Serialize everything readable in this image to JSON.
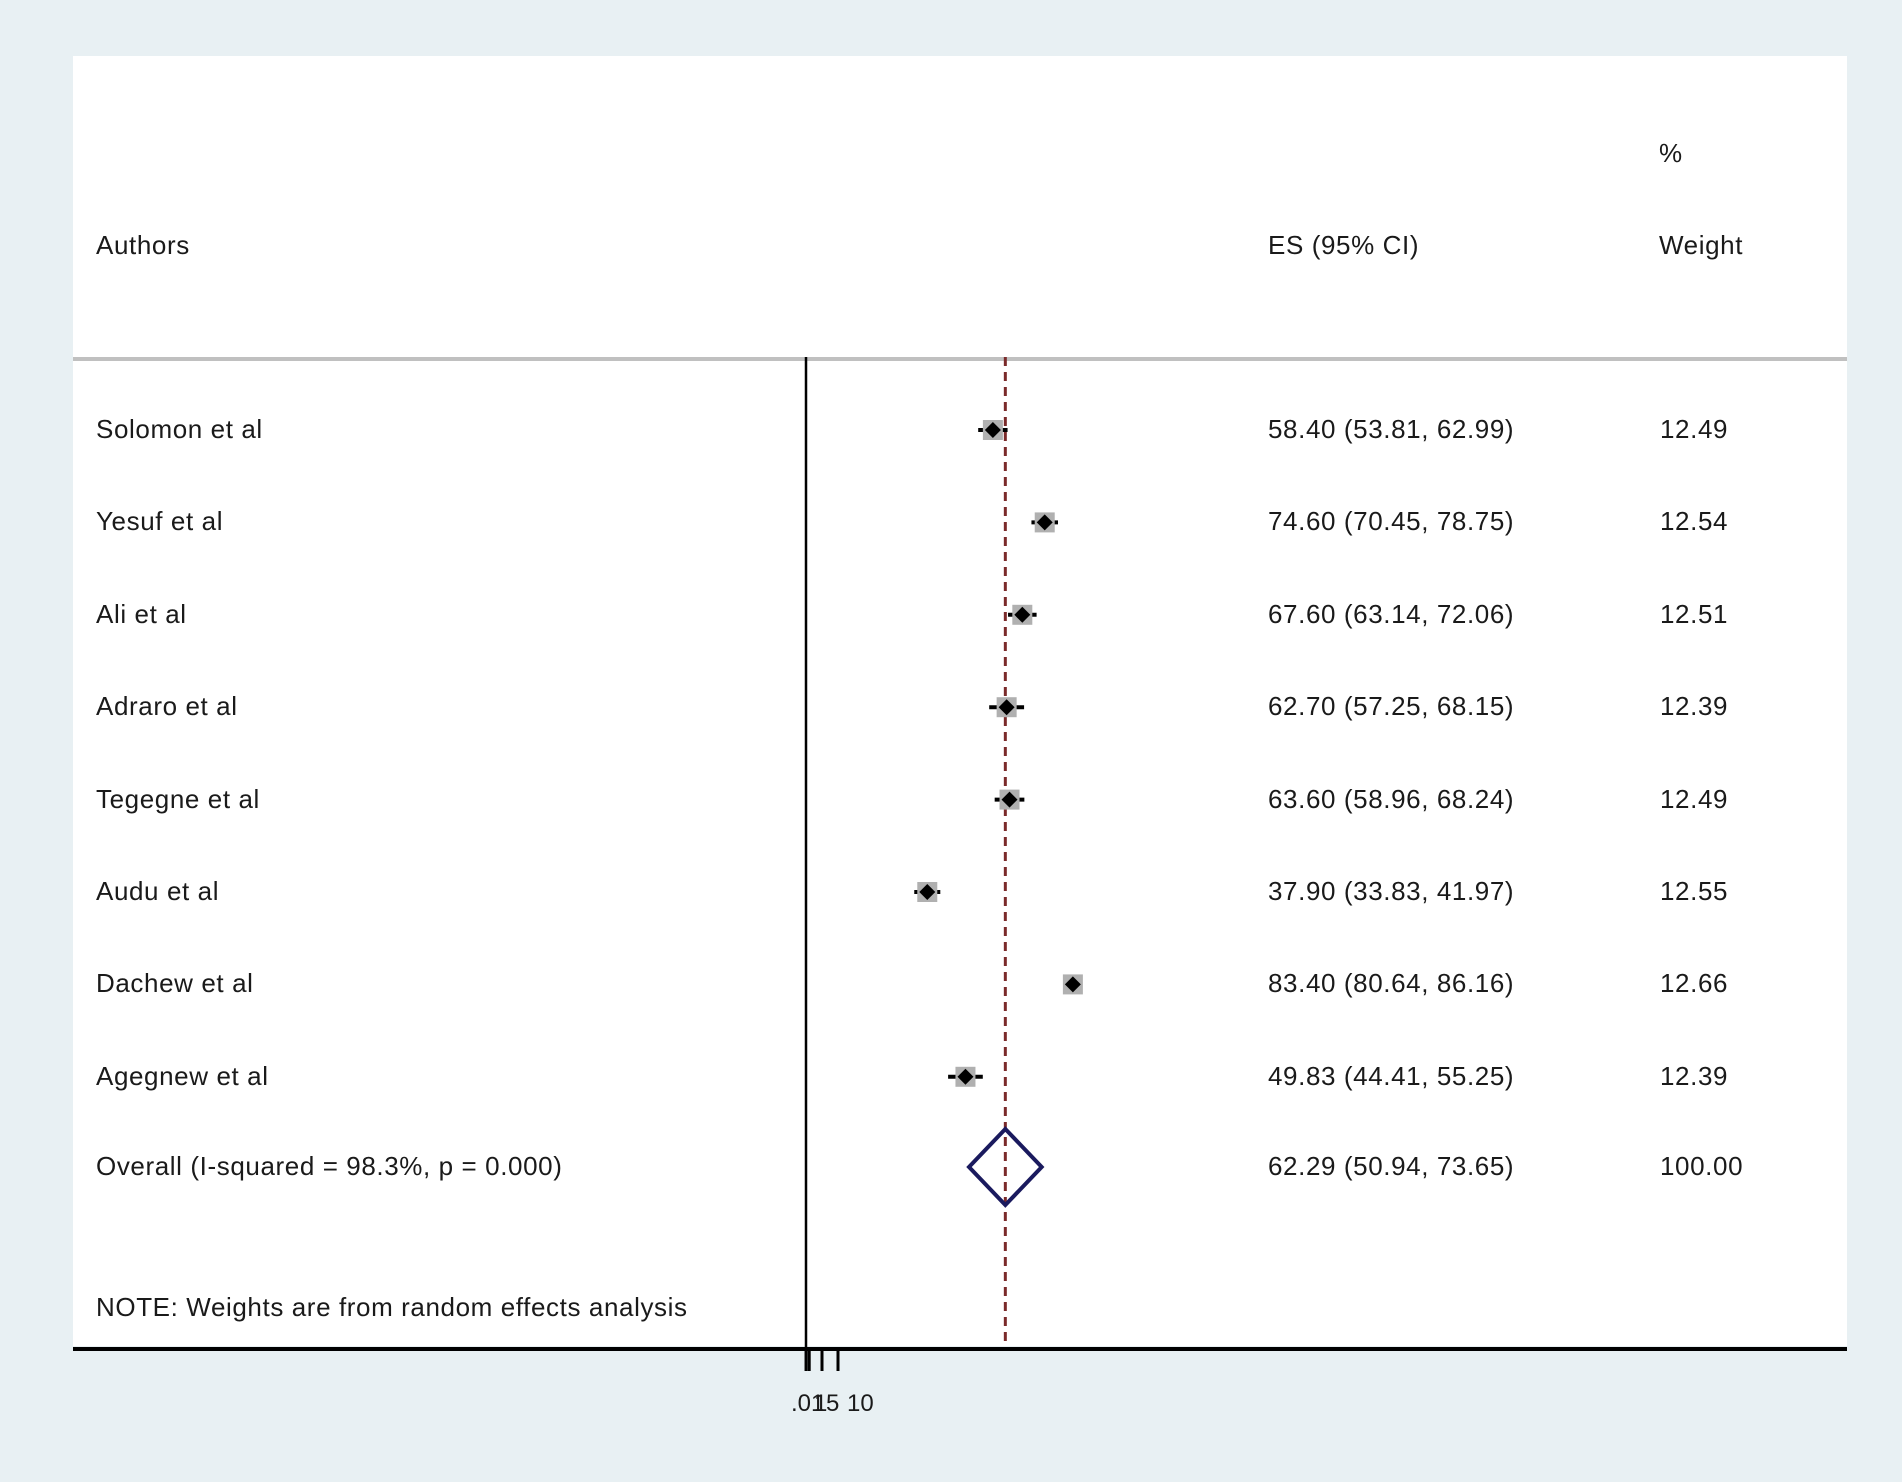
{
  "header": {
    "authors": "Authors",
    "es": "ES (95% CI)",
    "weight_pct": "%",
    "weight": "Weight"
  },
  "note": "NOTE: Weights are from random effects analysis",
  "x_tick_labels": [
    ".01",
    "1",
    "5",
    "10"
  ],
  "colors": {
    "background": "#e8f0f3",
    "panel": "#ffffff",
    "marker": "#000000",
    "marker_box": "#b0b0b0",
    "overall_diamond": "#1a1a5e",
    "reference_line": "#7a2a2a",
    "header_rule": "#c0c0c0"
  },
  "chart_data": {
    "type": "forest",
    "overall_es": 62.29,
    "rows": [
      {
        "label": "Solomon et al",
        "es": 58.4,
        "lo": 53.81,
        "hi": 62.99,
        "es_text": "58.40 (53.81, 62.99)",
        "weight": "12.49"
      },
      {
        "label": "Yesuf et al",
        "es": 74.6,
        "lo": 70.45,
        "hi": 78.75,
        "es_text": "74.60 (70.45, 78.75)",
        "weight": "12.54"
      },
      {
        "label": "Ali et al",
        "es": 67.6,
        "lo": 63.14,
        "hi": 72.06,
        "es_text": "67.60 (63.14, 72.06)",
        "weight": "12.51"
      },
      {
        "label": "Adraro et al",
        "es": 62.7,
        "lo": 57.25,
        "hi": 68.15,
        "es_text": "62.70 (57.25, 68.15)",
        "weight": "12.39"
      },
      {
        "label": "Tegegne et al",
        "es": 63.6,
        "lo": 58.96,
        "hi": 68.24,
        "es_text": "63.60 (58.96, 68.24)",
        "weight": "12.49"
      },
      {
        "label": "Audu et al",
        "es": 37.9,
        "lo": 33.83,
        "hi": 41.97,
        "es_text": "37.90 (33.83, 41.97)",
        "weight": "12.55"
      },
      {
        "label": "Dachew et al",
        "es": 83.4,
        "lo": 80.64,
        "hi": 86.16,
        "es_text": "83.40 (80.64, 86.16)",
        "weight": "12.66"
      },
      {
        "label": "Agegnew et al",
        "es": 49.83,
        "lo": 44.41,
        "hi": 55.25,
        "es_text": "49.83 (44.41, 55.25)",
        "weight": "12.39"
      }
    ],
    "overall": {
      "label": "Overall  (I-squared = 98.3%, p = 0.000)",
      "es": 62.29,
      "lo": 50.94,
      "hi": 73.65,
      "es_text": "62.29 (50.94, 73.65)",
      "weight": "100.00"
    }
  }
}
